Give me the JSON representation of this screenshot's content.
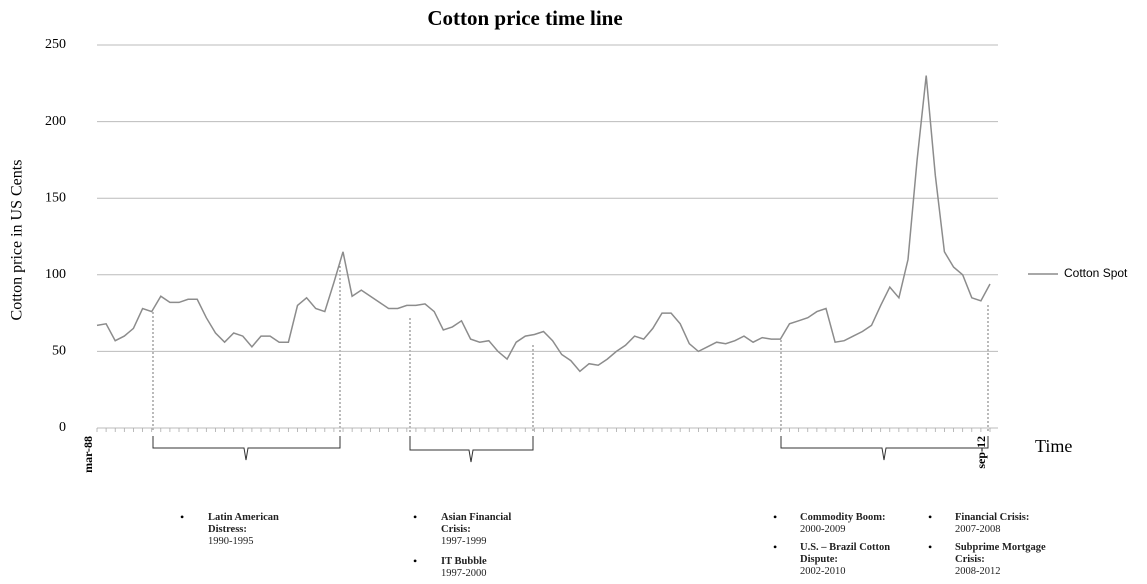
{
  "chart_data": {
    "type": "line",
    "title": "Cotton price time line",
    "y_label": "Cotton price in US Cents",
    "x_label": "Time",
    "categories": [
      "mar-88",
      null,
      null,
      null,
      null,
      null,
      null,
      null,
      null,
      null,
      null,
      null,
      null,
      null,
      null,
      null,
      null,
      null,
      null,
      null,
      null,
      null,
      null,
      null,
      null,
      null,
      null,
      null,
      null,
      null,
      null,
      null,
      null,
      null,
      null,
      null,
      null,
      null,
      null,
      null,
      null,
      null,
      null,
      null,
      null,
      null,
      null,
      null,
      null,
      null,
      null,
      null,
      null,
      null,
      null,
      null,
      null,
      null,
      null,
      null,
      null,
      null,
      null,
      null,
      null,
      null,
      null,
      null,
      null,
      null,
      null,
      null,
      null,
      null,
      null,
      null,
      null,
      null,
      null,
      null,
      null,
      null,
      null,
      null,
      null,
      null,
      null,
      null,
      null,
      null,
      null,
      null,
      null,
      null,
      null,
      null,
      null,
      null,
      "sep-12"
    ],
    "series": [
      {
        "name": "Cotton Spot",
        "color": "#8c8c8c",
        "values": [
          67,
          68,
          57,
          60,
          65,
          78,
          76,
          86,
          82,
          82,
          84,
          84,
          72,
          62,
          56,
          62,
          60,
          53,
          60,
          60,
          56,
          56,
          80,
          85,
          78,
          76,
          95,
          115,
          86,
          90,
          86,
          82,
          78,
          78,
          80,
          80,
          81,
          76,
          64,
          66,
          70,
          58,
          56,
          57,
          50,
          45,
          56,
          60,
          61,
          63,
          57,
          48,
          44,
          37,
          42,
          41,
          45,
          50,
          54,
          60,
          58,
          65,
          75,
          75,
          68,
          55,
          50,
          53,
          56,
          55,
          57,
          60,
          56,
          59,
          58,
          58,
          68,
          70,
          72,
          76,
          78,
          56,
          57,
          60,
          63,
          67,
          80,
          92,
          85,
          110,
          175,
          230,
          165,
          115,
          105,
          100,
          85,
          83,
          94
        ]
      }
    ],
    "ylim": [
      0,
      250
    ],
    "yticks": [
      0,
      50,
      100,
      150,
      200,
      250
    ],
    "grid": true,
    "legend": "right",
    "annotations": [
      {
        "title": "Latin American Distress:",
        "years": "1990-1995"
      },
      {
        "title": "Asian Financial Crisis:",
        "years": "1997-1999"
      },
      {
        "title": "IT Bubble",
        "years": "1997-2000"
      },
      {
        "title": "Commodity Boom:",
        "years": "2000-2009"
      },
      {
        "title": "U.S. – Brazil Cotton Dispute:",
        "years": "2002-2010"
      },
      {
        "title": "Financial Crisis:",
        "years": "2007-2008"
      },
      {
        "title": "Subprime Mortgage Crisis:",
        "years": "2008-2012"
      }
    ]
  }
}
